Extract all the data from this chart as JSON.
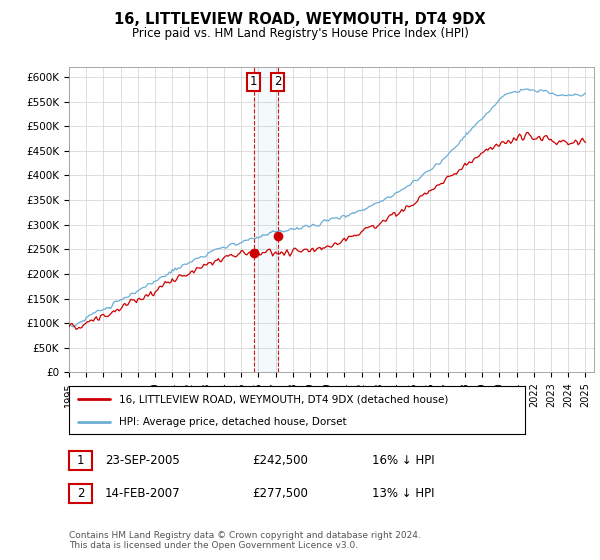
{
  "title": "16, LITTLEVIEW ROAD, WEYMOUTH, DT4 9DX",
  "subtitle": "Price paid vs. HM Land Registry's House Price Index (HPI)",
  "ylabel_ticks": [
    "£0",
    "£50K",
    "£100K",
    "£150K",
    "£200K",
    "£250K",
    "£300K",
    "£350K",
    "£400K",
    "£450K",
    "£500K",
    "£550K",
    "£600K"
  ],
  "ylim": [
    0,
    620000
  ],
  "xlim_year": [
    1995,
    2025.5
  ],
  "sale1_date": 2005.73,
  "sale1_price": 242500,
  "sale1_label": "1",
  "sale2_date": 2007.12,
  "sale2_price": 277500,
  "sale2_label": "2",
  "hpi_color": "#6baed6",
  "price_color": "#cc0000",
  "annotation_box_color": "#cc0000",
  "grid_color": "#d0d0d0",
  "background_color": "#ffffff",
  "legend_line1": "16, LITTLEVIEW ROAD, WEYMOUTH, DT4 9DX (detached house)",
  "legend_line2": "HPI: Average price, detached house, Dorset",
  "table_row1": [
    "1",
    "23-SEP-2005",
    "£242,500",
    "16% ↓ HPI"
  ],
  "table_row2": [
    "2",
    "14-FEB-2007",
    "£277,500",
    "13% ↓ HPI"
  ],
  "footnote": "Contains HM Land Registry data © Crown copyright and database right 2024.\nThis data is licensed under the Open Government Licence v3.0."
}
